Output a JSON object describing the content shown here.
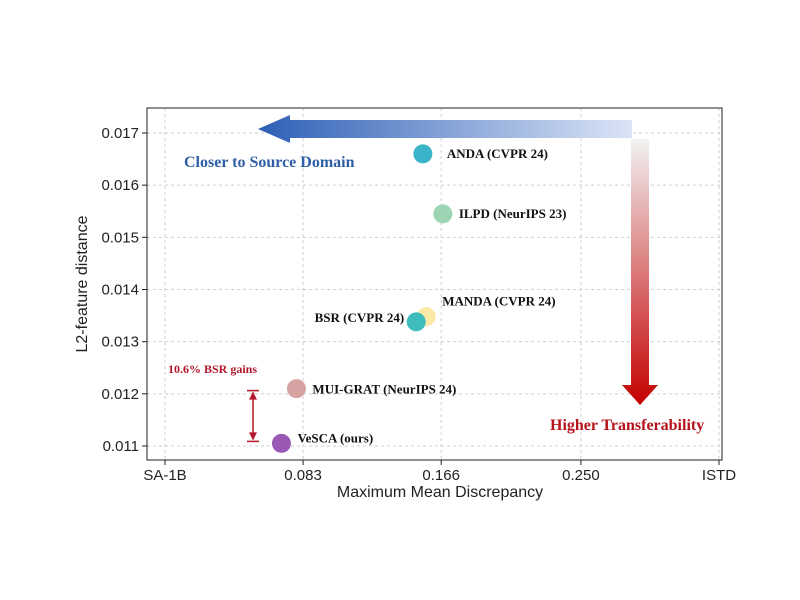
{
  "chart_data": {
    "type": "scatter",
    "title": "",
    "xlabel": "Maximum  Mean  Discrepancy",
    "ylabel": "L2-feature distance",
    "x_ticks": [
      "SA-1B",
      "0.083",
      "0.166",
      "0.250",
      "ISTD"
    ],
    "x_tick_values": [
      0.0,
      0.083,
      0.166,
      0.25,
      0.333
    ],
    "xlim": [
      0.0,
      0.333
    ],
    "y_ticks": [
      "0.011",
      "0.012",
      "0.013",
      "0.014",
      "0.015",
      "0.016",
      "0.017"
    ],
    "y_tick_values": [
      0.011,
      0.012,
      0.013,
      0.014,
      0.015,
      0.016,
      0.017
    ],
    "ylim": [
      0.0109,
      0.0175
    ],
    "grid": true,
    "points": [
      {
        "label": "ANDA (CVPR 24)",
        "x": 0.155,
        "y": 0.0166,
        "color": "#3bb3c9"
      },
      {
        "label": "ILPD (NeurIPS 23)",
        "x": 0.167,
        "y": 0.01545,
        "color": "#9dd4b4"
      },
      {
        "label": "MANDA (CVPR 24)",
        "x": 0.157,
        "y": 0.01348,
        "color": "#fbe9a6"
      },
      {
        "label": "BSR (CVPR 24)",
        "x": 0.151,
        "y": 0.01338,
        "color": "#3fbcbc"
      },
      {
        "label": "MUI-GRAT (NeurIPS 24)",
        "x": 0.079,
        "y": 0.0121,
        "color": "#d6a2a2"
      },
      {
        "label": "VeSCA (ours)",
        "x": 0.07,
        "y": 0.01105,
        "color": "#9b59b6"
      }
    ],
    "annotations": {
      "source_domain": "Closer to Source Domain",
      "transferability": "Higher Transferability",
      "gain": "10.6%  BSR gains"
    },
    "colors": {
      "arrow_blue": "#2d5fb6",
      "arrow_red": "#c40000",
      "gain_text": "#b2182b",
      "source_text": "#2e5fa6",
      "transfer_text": "#b5121b"
    }
  }
}
